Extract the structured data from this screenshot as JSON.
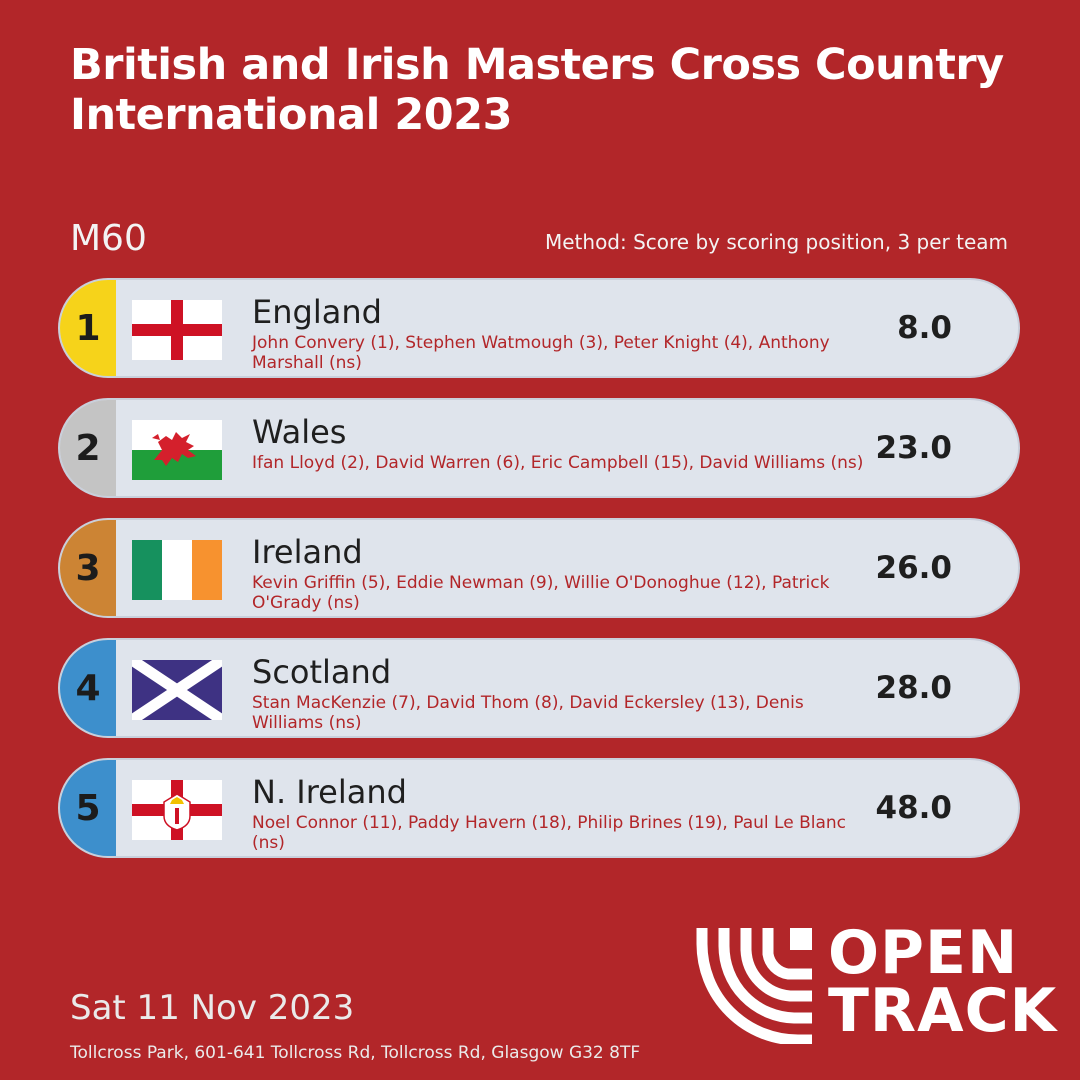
{
  "title": "British and Irish Masters Cross Country International 2023",
  "category": "M60",
  "method": "Method: Score by scoring position, 3 per team",
  "teams": [
    {
      "position": "1",
      "country": "England",
      "members": "John Convery (1), Stephen Watmough (3), Peter Knight (4), Anthony Marshall (ns)",
      "score": "8.0",
      "badge_color": "#f6d31a",
      "flag": "england-flag-icon"
    },
    {
      "position": "2",
      "country": "Wales",
      "members": "Ifan Lloyd (2), David Warren (6), Eric Campbell (15), David Williams (ns)",
      "score": "23.0",
      "badge_color": "#c4c4c4",
      "flag": "wales-flag-icon"
    },
    {
      "position": "3",
      "country": "Ireland",
      "members": "Kevin Griffin (5), Eddie Newman (9), Willie O'Donoghue (12), Patrick O'Grady (ns)",
      "score": "26.0",
      "badge_color": "#cc8434",
      "flag": "ireland-flag-icon"
    },
    {
      "position": "4",
      "country": "Scotland",
      "members": "Stan MacKenzie (7), David Thom (8), David Eckersley (13), Denis Williams (ns)",
      "score": "28.0",
      "badge_color": "#3d8fcc",
      "flag": "scotland-flag-icon"
    },
    {
      "position": "5",
      "country": "N. Ireland",
      "members": "Noel Connor (11), Paddy Havern (18), Philip Brines (19), Paul Le Blanc (ns)",
      "score": "48.0",
      "badge_color": "#3d8fcc",
      "flag": "northern-ireland-flag-icon"
    }
  ],
  "footer": {
    "date": "Sat 11 Nov 2023",
    "venue": "Tollcross Park, 601-641 Tollcross Rd, Tollcross Rd, Glasgow G32 8TF"
  },
  "logo": {
    "line1": "OPEN",
    "line2": "TRACK"
  },
  "colors": {
    "background": "#b22629",
    "row": "#dfe4ec",
    "accent_text": "#b22629"
  }
}
